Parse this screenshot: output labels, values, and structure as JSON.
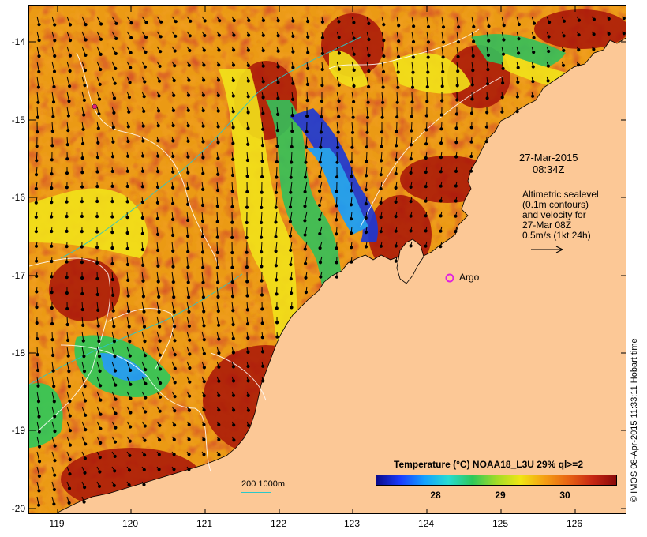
{
  "map": {
    "lon_range": [
      118.6,
      126.7
    ],
    "lat_range": [
      -20.1,
      -13.6
    ],
    "lon_ticks": [
      "119",
      "120",
      "121",
      "122",
      "123",
      "124",
      "125",
      "126"
    ],
    "lat_ticks": [
      "-14",
      "-15",
      "-16",
      "-17",
      "-18",
      "-19",
      "-20"
    ],
    "land_color": "#fcc896"
  },
  "annotations": {
    "date_line1": "27-Mar-2015",
    "date_line2": "08:34Z",
    "alt_line1": "Altimetric sealevel",
    "alt_line2": "(0.1m contours)",
    "alt_line3": "and velocity for",
    "alt_line4": "27-Mar 08Z",
    "alt_line5": "0.5m/s (1kt 24h)",
    "argo_label": "Argo",
    "credit": "© IMOS 08-Apr-2015 11:33:11 Hobart time",
    "scale_label": "200  1000m"
  },
  "colorbar": {
    "title": "Temperature (°C) NOAA18_L3U 29% ql>=2",
    "ticks": [
      "28",
      "29",
      "30"
    ]
  }
}
